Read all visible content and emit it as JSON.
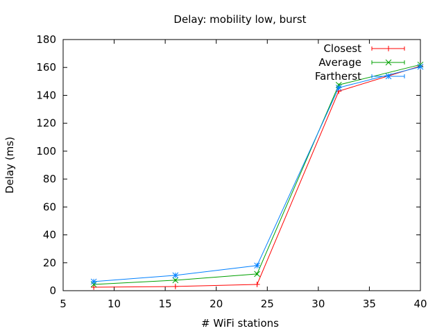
{
  "chart_data": {
    "type": "line",
    "title": "Delay: mobility low, burst",
    "xlabel": "# WiFi stations",
    "ylabel": "Delay (ms)",
    "xlim": [
      5,
      40
    ],
    "ylim": [
      0,
      180
    ],
    "xticks": [
      5,
      10,
      15,
      20,
      25,
      30,
      35,
      40
    ],
    "yticks": [
      0,
      20,
      40,
      60,
      80,
      100,
      120,
      140,
      160,
      180
    ],
    "grid": false,
    "legend_position": "top-right",
    "x": [
      8,
      16,
      24,
      32,
      40
    ],
    "series": [
      {
        "name": "Closest",
        "color": "#ff0000",
        "marker": "plus",
        "values": [
          2.5,
          3,
          4.5,
          143,
          161
        ]
      },
      {
        "name": "Average",
        "color": "#00a000",
        "marker": "cross",
        "values": [
          4.5,
          7.5,
          12,
          147.5,
          162
        ]
      },
      {
        "name": "Fartherst",
        "color": "#0080ff",
        "marker": "star",
        "values": [
          6.5,
          11,
          18,
          145.5,
          160.5
        ]
      }
    ]
  }
}
